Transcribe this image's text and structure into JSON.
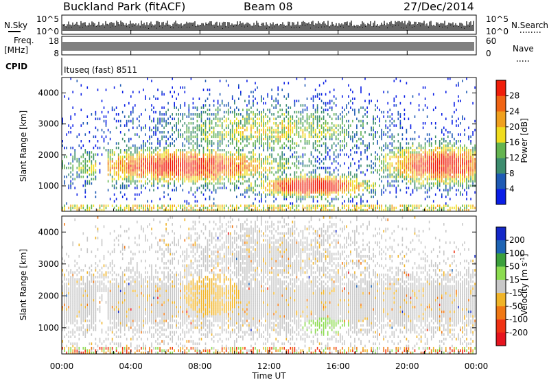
{
  "header": {
    "title": "Buckland Park (fitACF)",
    "beam": "Beam 08",
    "date": "27/Dec/2014"
  },
  "top_panels": {
    "nsky_label": "N.Sky",
    "nsearch_label": "N.Search",
    "noise_ticks_left": [
      "10^5",
      "10^0"
    ],
    "noise_ticks_right": [
      "10^5",
      "10^0"
    ],
    "freq_label_line1": "Freq.",
    "freq_label_line2": "[MHz]",
    "freq_ticks": [
      "18",
      "8"
    ],
    "nave_label": "Nave",
    "nave_ticks": [
      "60",
      "0"
    ],
    "cpid_label": "CPID",
    "cpid_text": "Ituseq (fast) 8511"
  },
  "x_axis": {
    "label": "Time UT",
    "ticks": [
      "00:00",
      "04:00",
      "08:00",
      "12:00",
      "16:00",
      "20:00",
      "00:00"
    ]
  },
  "chart_data": [
    {
      "type": "heatmap",
      "name": "power",
      "xlabel": "Time UT",
      "ylabel": "Slant Range [km]",
      "xlim": [
        0,
        24
      ],
      "ylim": [
        180,
        4500
      ],
      "yticks": [
        1000,
        2000,
        3000,
        4000
      ],
      "colorbar": {
        "label": "Power [dB]",
        "ticks": [
          4,
          8,
          12,
          16,
          20,
          24,
          28
        ],
        "colors": [
          "#0a1ee6",
          "#1e5ab4",
          "#3c8c6e",
          "#64b450",
          "#f0dc1e",
          "#f0a01e",
          "#f06414",
          "#f01e0a"
        ]
      },
      "features": [
        {
          "time_start": 0.0,
          "time_end": 24.0,
          "range_start": 180,
          "range_end": 380,
          "level": "mixed"
        },
        {
          "time_start": 0.5,
          "time_end": 11.0,
          "range_start": 1100,
          "range_end": 2300,
          "level": "strong"
        },
        {
          "time_start": 10.0,
          "time_end": 17.5,
          "range_start": 700,
          "range_end": 1300,
          "level": "strongest"
        },
        {
          "time_start": 19.0,
          "time_end": 24.0,
          "range_start": 1000,
          "range_end": 2600,
          "level": "strong"
        }
      ]
    },
    {
      "type": "heatmap",
      "name": "velocity",
      "xlabel": "Time UT",
      "ylabel": "Slant Range [km]",
      "xlim": [
        0,
        24
      ],
      "ylim": [
        180,
        4500
      ],
      "yticks": [
        1000,
        2000,
        3000,
        4000
      ],
      "colorbar": {
        "label": "Velocity [m s^-1]",
        "ticks": [
          200,
          100,
          50,
          15,
          -15,
          -50,
          -100,
          -200
        ],
        "colors": [
          "#1428c8",
          "#1e64b4",
          "#3ca03c",
          "#8cdc50",
          "#c8c8c8",
          "#f0b428",
          "#f07814",
          "#f03214",
          "#e6141e"
        ]
      },
      "features": [
        {
          "time_start": 0.0,
          "time_end": 24.0,
          "range_start": 1000,
          "range_end": 3200,
          "level": "low_velocity_gray"
        },
        {
          "time_start": 7.5,
          "time_end": 10.0,
          "range_start": 1500,
          "range_end": 2600,
          "level": "negative_orange"
        },
        {
          "time_start": 14.0,
          "time_end": 16.5,
          "range_start": 800,
          "range_end": 1300,
          "level": "positive_green"
        }
      ]
    }
  ]
}
